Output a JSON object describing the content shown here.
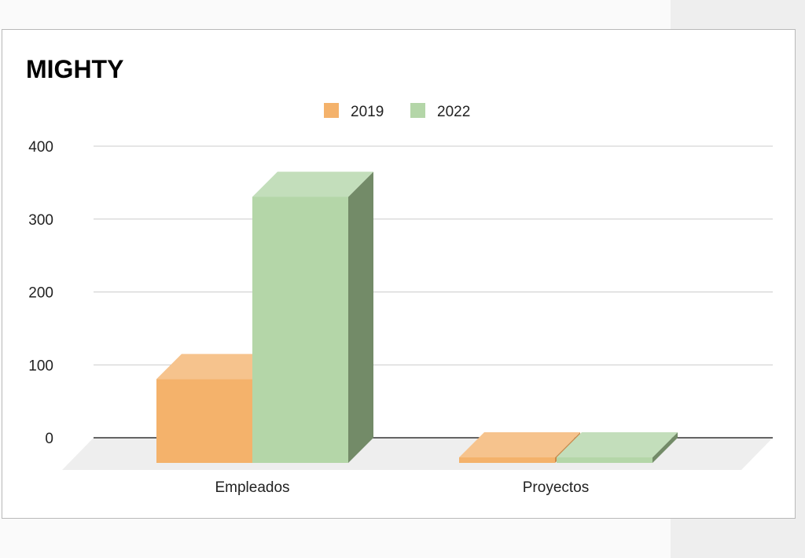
{
  "chart_data": {
    "type": "bar",
    "title": "MIGHTY",
    "categories": [
      "Empleados",
      "Proyectos"
    ],
    "series": [
      {
        "name": "2019",
        "values": [
          115,
          0
        ],
        "color": "#f4b26b",
        "top_color": "#f6c38d",
        "side_color": "#c98a4a"
      },
      {
        "name": "2022",
        "values": [
          365,
          0
        ],
        "color": "#b4d6a8",
        "top_color": "#c3debb",
        "side_color": "#738b68"
      }
    ],
    "y_ticks": [
      "0",
      "100",
      "200",
      "300",
      "400"
    ],
    "ylim": [
      0,
      400
    ],
    "xlabel": "",
    "ylabel": "",
    "grid": true,
    "legend_position": "top-center",
    "style": "3d-column"
  }
}
